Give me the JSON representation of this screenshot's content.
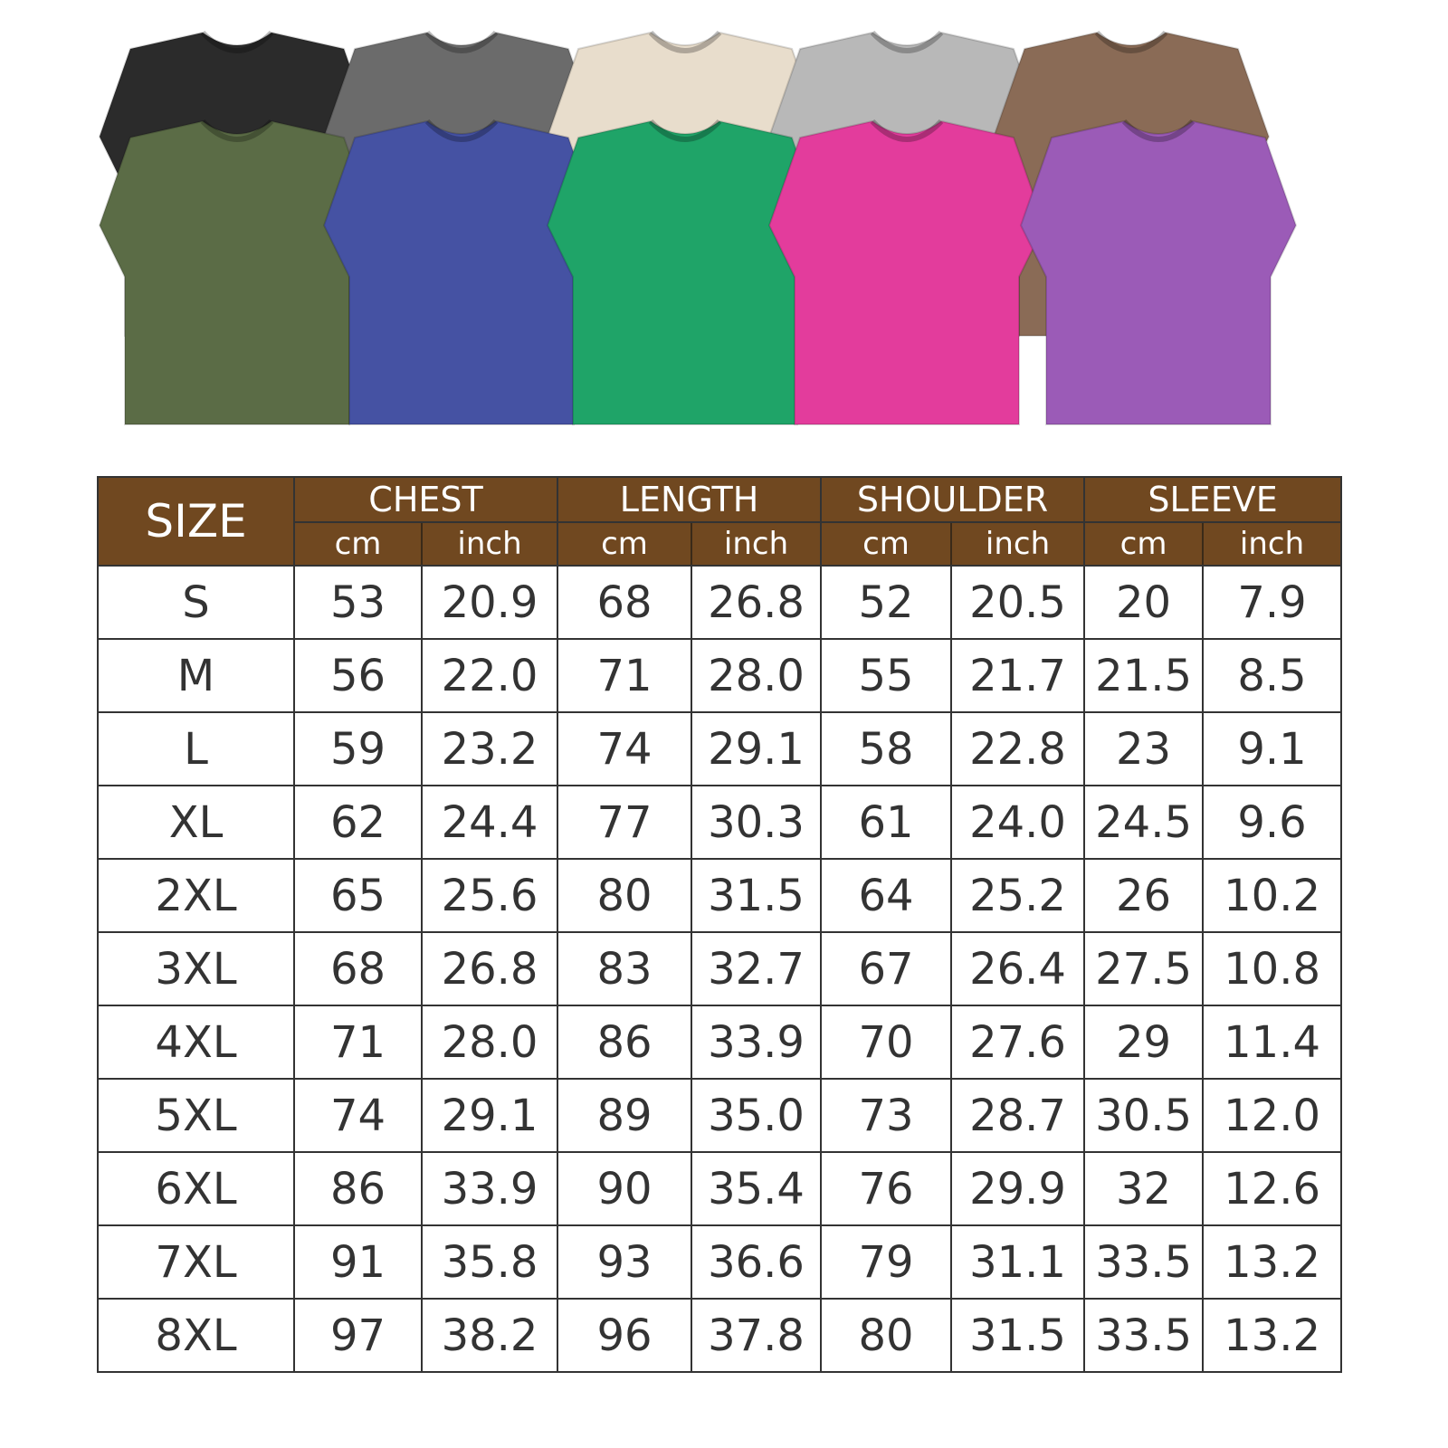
{
  "shirts": {
    "back_row": [
      {
        "color_name": "black",
        "hex": "#2b2b2b"
      },
      {
        "color_name": "dark-gray",
        "hex": "#6b6b6b"
      },
      {
        "color_name": "cream",
        "hex": "#e8ddcc"
      },
      {
        "color_name": "light-gray",
        "hex": "#b8b8b8"
      },
      {
        "color_name": "brown",
        "hex": "#8a6b56"
      }
    ],
    "front_row": [
      {
        "color_name": "olive",
        "hex": "#5b6c46"
      },
      {
        "color_name": "blue",
        "hex": "#4552a3"
      },
      {
        "color_name": "green",
        "hex": "#1fa468"
      },
      {
        "color_name": "pink",
        "hex": "#e33c9c"
      },
      {
        "color_name": "purple",
        "hex": "#9b5bb7"
      }
    ]
  },
  "colors": {
    "header": "#704820",
    "header_text": "#ffffff",
    "border": "#333333"
  },
  "table": {
    "size_label": "SIZE",
    "groups": [
      {
        "label": "CHEST",
        "units": [
          "cm",
          "inch"
        ]
      },
      {
        "label": "LENGTH",
        "units": [
          "cm",
          "inch"
        ]
      },
      {
        "label": "SHOULDER",
        "units": [
          "cm",
          "inch"
        ]
      },
      {
        "label": "SLEEVE",
        "units": [
          "cm",
          "inch"
        ]
      }
    ],
    "rows": [
      [
        "S",
        "53",
        "20.9",
        "68",
        "26.8",
        "52",
        "20.5",
        "20",
        "7.9"
      ],
      [
        "M",
        "56",
        "22.0",
        "71",
        "28.0",
        "55",
        "21.7",
        "21.5",
        "8.5"
      ],
      [
        "L",
        "59",
        "23.2",
        "74",
        "29.1",
        "58",
        "22.8",
        "23",
        "9.1"
      ],
      [
        "XL",
        "62",
        "24.4",
        "77",
        "30.3",
        "61",
        "24.0",
        "24.5",
        "9.6"
      ],
      [
        "2XL",
        "65",
        "25.6",
        "80",
        "31.5",
        "64",
        "25.2",
        "26",
        "10.2"
      ],
      [
        "3XL",
        "68",
        "26.8",
        "83",
        "32.7",
        "67",
        "26.4",
        "27.5",
        "10.8"
      ],
      [
        "4XL",
        "71",
        "28.0",
        "86",
        "33.9",
        "70",
        "27.6",
        "29",
        "11.4"
      ],
      [
        "5XL",
        "74",
        "29.1",
        "89",
        "35.0",
        "73",
        "28.7",
        "30.5",
        "12.0"
      ],
      [
        "6XL",
        "86",
        "33.9",
        "90",
        "35.4",
        "76",
        "29.9",
        "32",
        "12.6"
      ],
      [
        "7XL",
        "91",
        "35.8",
        "93",
        "36.6",
        "79",
        "31.1",
        "33.5",
        "13.2"
      ],
      [
        "8XL",
        "97",
        "38.2",
        "96",
        "37.8",
        "80",
        "31.5",
        "33.5",
        "13.2"
      ]
    ]
  }
}
